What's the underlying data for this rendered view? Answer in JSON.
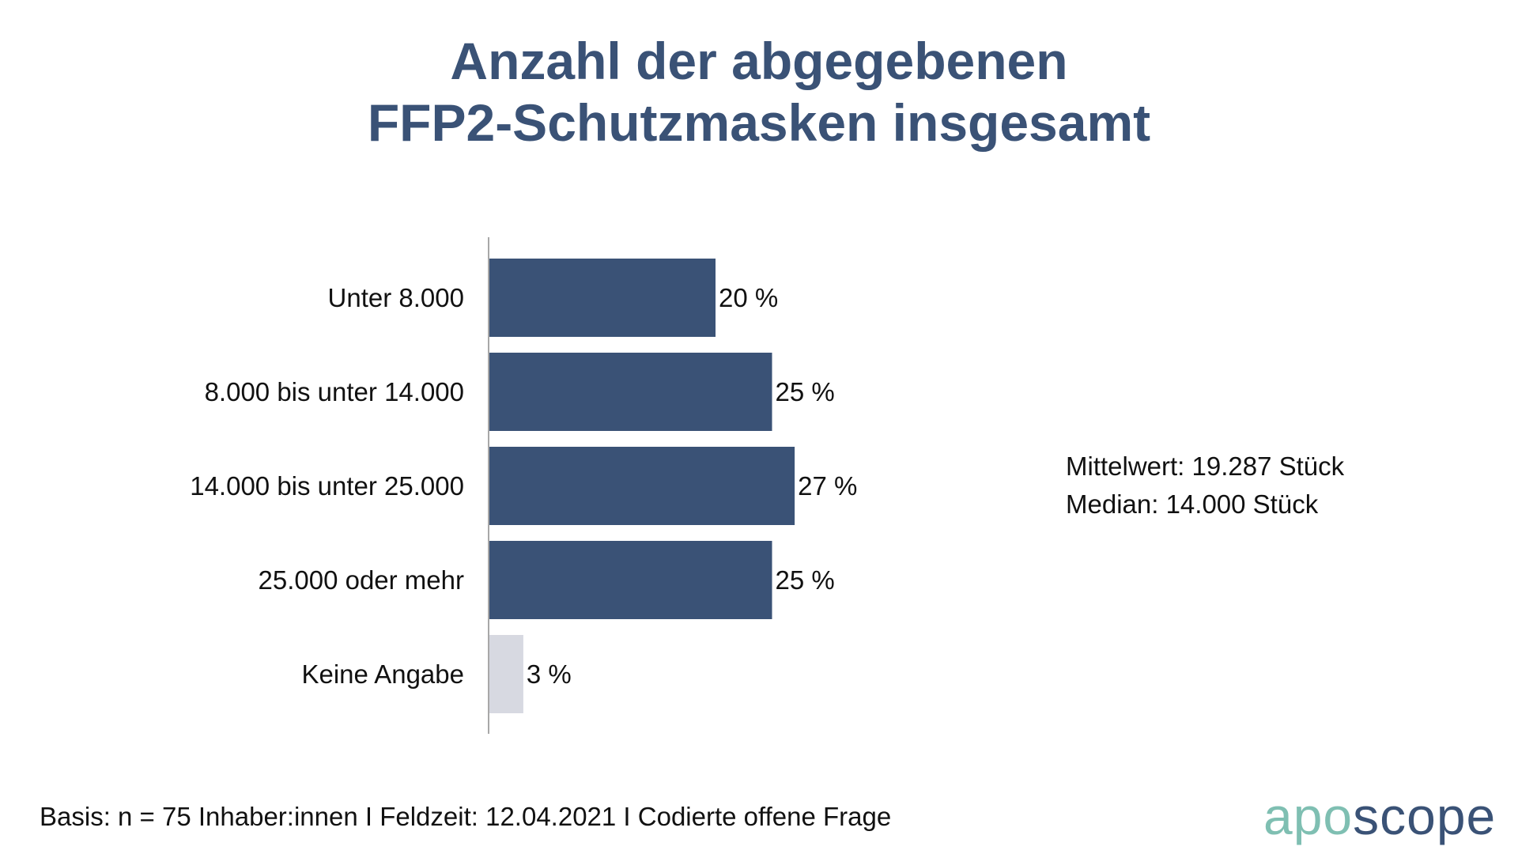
{
  "chart_data": {
    "type": "bar",
    "orientation": "horizontal",
    "title_lines": [
      "Anzahl der abgegebenen",
      "FFP2-Schutzmasken insgesamt"
    ],
    "categories": [
      "Unter 8.000",
      "8.000 bis unter 14.000",
      "14.000 bis unter 25.000",
      "25.000 oder mehr",
      "Keine Angabe"
    ],
    "values": [
      20,
      25,
      27,
      25,
      3
    ],
    "value_labels": [
      "20 %",
      "25 %",
      "27 %",
      "25 %",
      "3 %"
    ],
    "unit": "%",
    "xlim": [
      0,
      100
    ],
    "grid": false,
    "colors": [
      "#3a5276",
      "#3a5276",
      "#3a5276",
      "#3a5276",
      "#d7d9e1"
    ],
    "axis_color": "#8c8c8c"
  },
  "stats": {
    "mean": "Mittelwert: 19.287 Stück",
    "median": "Median: 14.000 Stück"
  },
  "footnote": "Basis: n = 75 Inhaber:innen I Feldzeit: 12.04.2021 I Codierte offene Frage",
  "logo": {
    "part1": "apo",
    "part2": "scope",
    "color1": "#7fbfb2",
    "color2": "#3a5276"
  }
}
